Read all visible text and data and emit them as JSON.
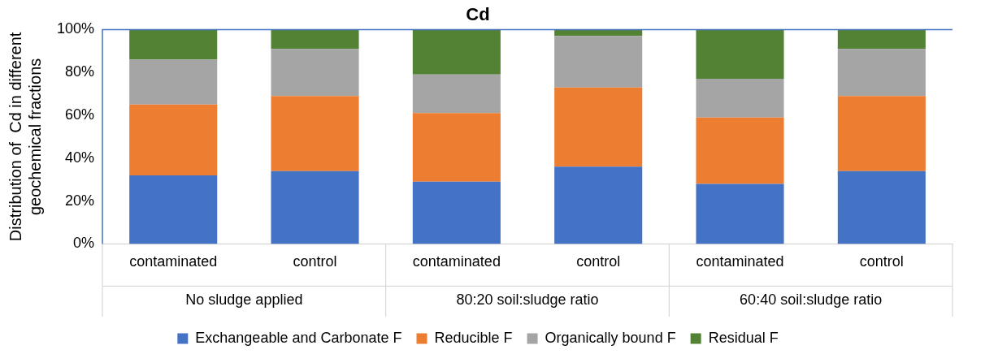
{
  "chart_data": {
    "type": "bar",
    "title": "Cd",
    "ylabel": "Distribution of  Cd in different geochemical fractions",
    "categories": [
      "contaminated",
      "control",
      "contaminated",
      "control",
      "contaminated",
      "control"
    ],
    "annotations": [
      "No sludge applied",
      "80:20 soil:sludge ratio",
      "60:40 soil:sludge ratio"
    ],
    "stacked": true,
    "series": [
      {
        "name": "Exchangeable and Carbonate F",
        "color": "#4472c4",
        "values": [
          32,
          34,
          29,
          36,
          28,
          34
        ]
      },
      {
        "name": "Reducible F",
        "color": "#ed7d31",
        "values": [
          33,
          35,
          32,
          37,
          31,
          35
        ]
      },
      {
        "name": "Organically bound F",
        "color": "#a5a5a5",
        "values": [
          21,
          22,
          18,
          24,
          18,
          22
        ]
      },
      {
        "name": "Residual F",
        "color": "#548235",
        "values": [
          14,
          9,
          21,
          3,
          23,
          9
        ]
      }
    ],
    "ylim": [
      0,
      100
    ],
    "yticks": [
      {
        "value": 0,
        "label": "0%"
      },
      {
        "value": 20,
        "label": "20%"
      },
      {
        "value": 40,
        "label": "40%"
      },
      {
        "value": 60,
        "label": "60%"
      },
      {
        "value": 80,
        "label": "80%"
      },
      {
        "value": 100,
        "label": "100%"
      }
    ],
    "grid": false,
    "legend": "bottom"
  }
}
